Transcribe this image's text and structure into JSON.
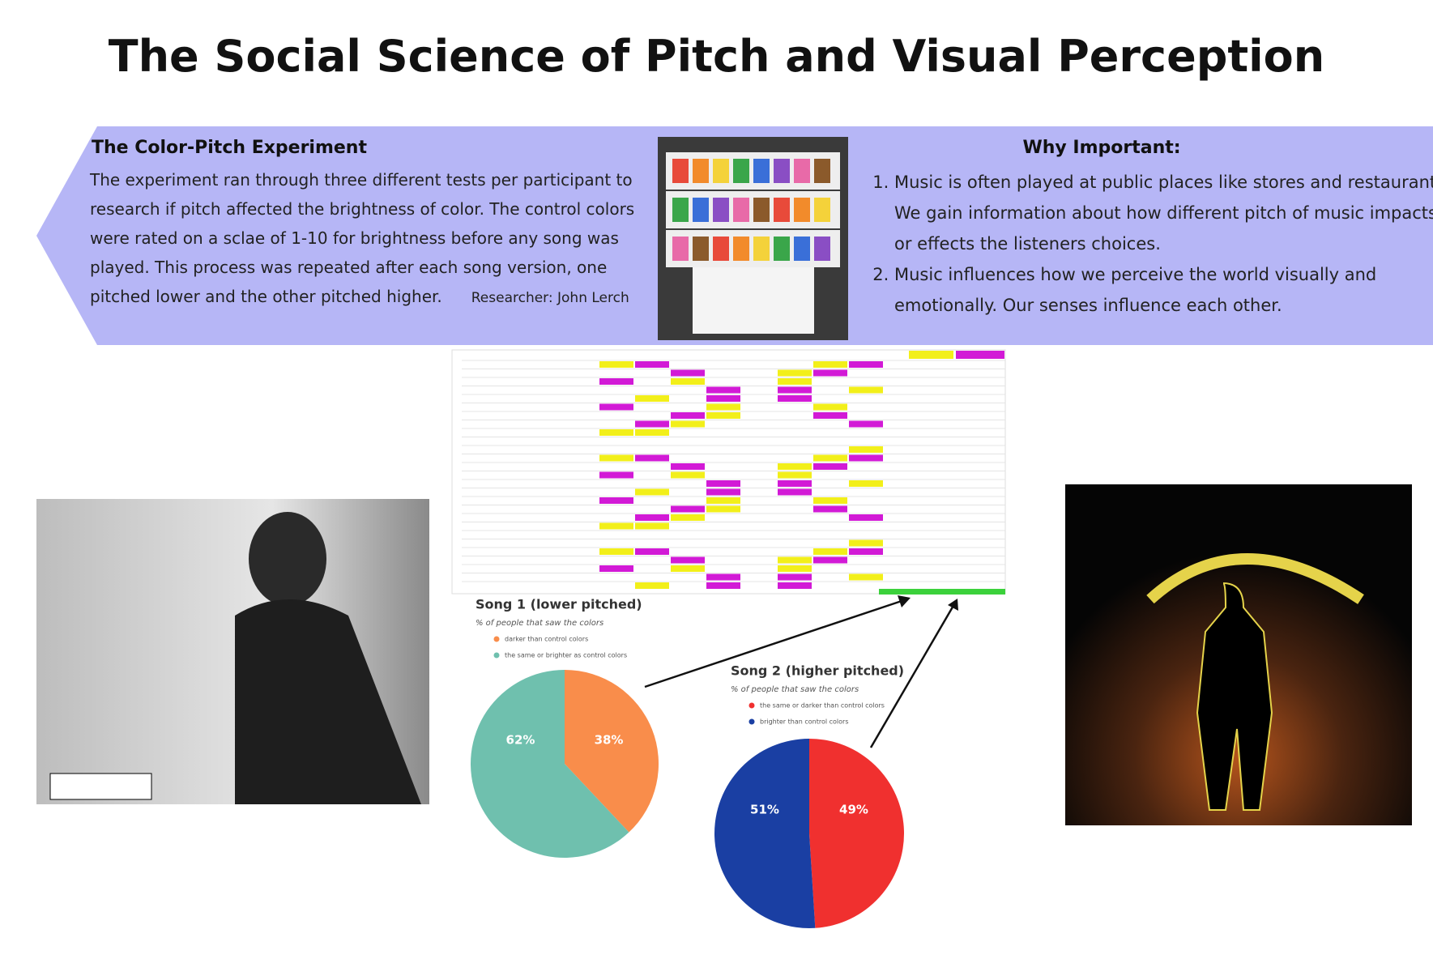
{
  "title": "The Social Science of Pitch and Visual Perception",
  "experiment": {
    "heading": "The Color-Pitch Experiment",
    "body": "The experiment ran through three different tests per participant to research if pitch affected the brightness of color. The control colors were rated on a sclae of 1-10 for brightness before any song was played. This process was repeated after each song version, one pitched lower and the other pitched higher.",
    "researcher": "Researcher: John Lerch"
  },
  "importance": {
    "heading": "Why Important:",
    "items": [
      "Music is often played at public places like stores and restaurants. We gain information about how different pitch of music impacts or effects the listeners choices.",
      "Music influences how we perceive the world visually and emotionally. Our senses influence each other."
    ]
  },
  "chart_data": [
    {
      "type": "pie",
      "title": "Song 1 (lower pitched)",
      "subtitle": "% of people that saw the colors",
      "categories": [
        "darker than control colors",
        "the same or brighter as control colors"
      ],
      "values": [
        38,
        62
      ],
      "value_labels": [
        "38%",
        "62%"
      ],
      "colors": [
        "#f98d4b",
        "#6fc0ae"
      ]
    },
    {
      "type": "pie",
      "title": "Song 2 (higher pitched)",
      "subtitle": "% of people that saw the colors",
      "categories": [
        "the same or darker than control colors",
        "brighter than control colors"
      ],
      "values": [
        49,
        51
      ],
      "value_labels": [
        "49%",
        "51%"
      ],
      "colors": [
        "#f0302f",
        "#1a3fa3"
      ]
    }
  ]
}
